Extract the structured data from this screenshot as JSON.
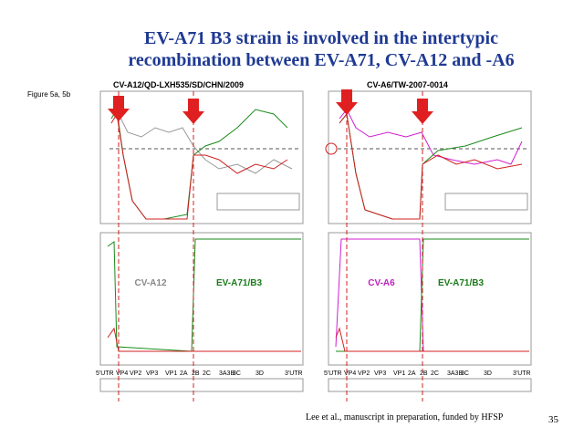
{
  "slide": {
    "title_lines": [
      "EV-A71 B3 strain is involved in the intertypic",
      "recombination between EV-A71, CV-A12 and -A6"
    ],
    "figure_label": "Figure 5a, 5b",
    "panels": [
      {
        "title": "CV-A12/QD-LXH535/SD/CHN/2009",
        "left_label": "CV-A12",
        "right_label": "EV-A71/B3"
      },
      {
        "title": "CV-A6/TW-2007-0014",
        "left_label": "CV-A6",
        "right_label": "EV-A71/B3"
      }
    ],
    "genome_labels": [
      "5'UTR",
      "VP4",
      "VP2",
      "VP3",
      "VP1",
      "2A",
      "2B",
      "2C",
      "3A3B",
      "3C",
      "3D",
      "3'UTR"
    ],
    "citation": "Lee et al., manuscript in preparation, funded by HFSP",
    "page_number": "35"
  }
}
